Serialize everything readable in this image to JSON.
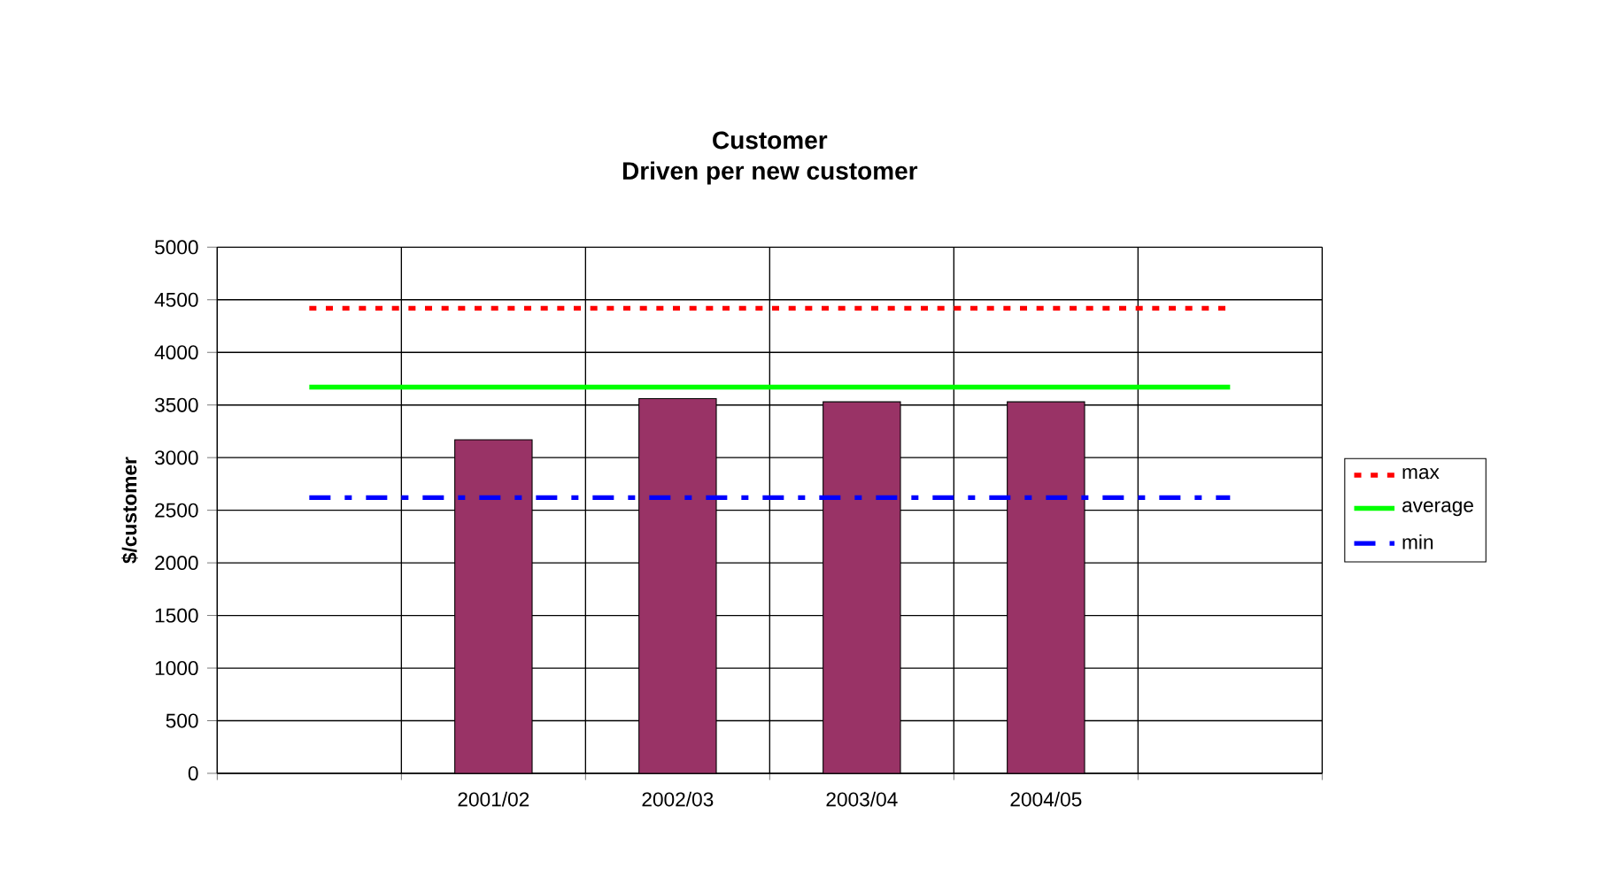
{
  "chart_data": {
    "type": "bar",
    "title": "Customer",
    "subtitle": "Driven per new customer",
    "ylabel": "$/customer",
    "categories": [
      null,
      "2001/02",
      "2002/03",
      "2003/04",
      "2004/05",
      null
    ],
    "series": [
      {
        "color": "#993366",
        "values": [
          null,
          3170,
          3560,
          3530,
          3530,
          null
        ]
      },
      {
        "name": "max",
        "type": "line",
        "color": "#ff0000",
        "line_style": "dotted",
        "values": [
          4420,
          4420,
          4420,
          4420,
          4420,
          4420
        ]
      },
      {
        "name": "average",
        "type": "line",
        "color": "#00ff00",
        "line_style": "solid",
        "values": [
          3670,
          3670,
          3670,
          3670,
          3670,
          3670
        ]
      },
      {
        "name": "min",
        "type": "line",
        "color": "#0000ff",
        "line_style": "dashed",
        "values": [
          2620,
          2620,
          2620,
          2620,
          2620,
          2620
        ]
      }
    ],
    "ylim": [
      0,
      5000
    ],
    "yticks": [
      0,
      500,
      1000,
      1500,
      2000,
      2500,
      3000,
      3500,
      4000,
      4500,
      5000
    ],
    "grid": true,
    "legend": "right",
    "marker": "none"
  }
}
